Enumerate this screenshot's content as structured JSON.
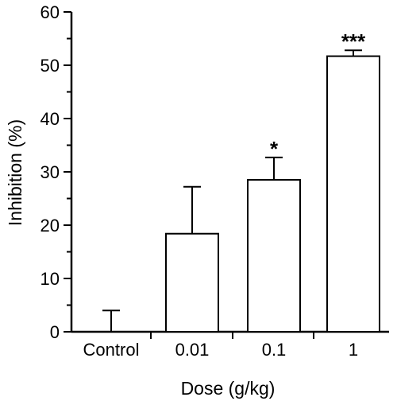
{
  "chart_data": {
    "type": "bar",
    "title": "",
    "xlabel": "Dose (g/kg)",
    "ylabel": "Inhibition (%)",
    "categories": [
      "Control",
      "0.01",
      "0.1",
      "1"
    ],
    "values": [
      0,
      18.4,
      28.5,
      51.7
    ],
    "error_upper": [
      4.0,
      27.2,
      32.7,
      52.8
    ],
    "significance": [
      "",
      "",
      "*",
      "***"
    ],
    "ylim": [
      0,
      60
    ],
    "yticks": [
      "0",
      "10",
      "20",
      "30",
      "40",
      "50",
      "60"
    ],
    "grid": false,
    "legend": "none",
    "colors": {
      "bar_fill": "#ffffff",
      "stroke": "#000000"
    }
  }
}
